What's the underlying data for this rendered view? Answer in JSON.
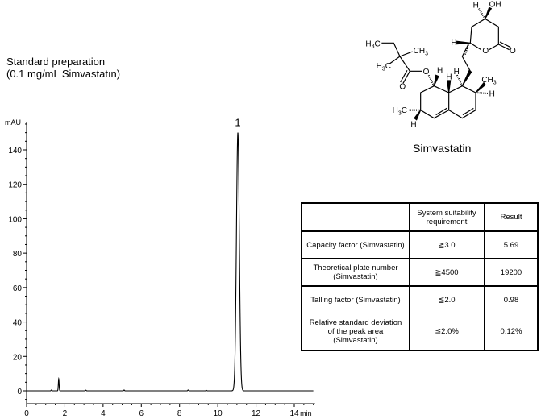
{
  "title": {
    "line1": "Standard preparation",
    "line2": "(0.1 mg/mL Simvastatın)"
  },
  "structure": {
    "caption": "Simvastatin",
    "labels": {
      "h3c_a": "H3C",
      "ch3_a": "CH3",
      "h3c_b": "H3C",
      "o_carbonyl": "O",
      "o_ester": "O",
      "h1": "H",
      "h8a": "H",
      "h8": "H",
      "ch3_7": "CH3",
      "h7": "H",
      "h3c_3": "H3C",
      "h3": "H",
      "h6p": "H",
      "o_ring": "O",
      "o_lactone": "O",
      "h4p": "H",
      "oh": "OH"
    }
  },
  "table": {
    "headers": [
      "",
      "System suitability requirement",
      "Result"
    ],
    "rows": [
      {
        "item": "Capacity factor (Simvastatin)",
        "requirement": "≧3.0",
        "result": "5.69"
      },
      {
        "item": "Theoretical plate number (Simvastatin)",
        "requirement": "≧4500",
        "result": "19200"
      },
      {
        "item": "Talling factor (Simvastatin)",
        "requirement": "≦2.0",
        "result": "0.98"
      },
      {
        "item": "Relative standard deviation of the peak area (Simvastatin)",
        "requirement": "≦2.0%",
        "result": "0.12%"
      }
    ]
  },
  "chart_data": {
    "type": "line",
    "xlabel": "min",
    "ylabel": "mAU",
    "xlim": [
      0,
      15
    ],
    "ylim": [
      -7.5,
      156
    ],
    "xticks": [
      0,
      2,
      4,
      6,
      8,
      10,
      12,
      14
    ],
    "yticks": [
      0,
      20,
      40,
      60,
      80,
      100,
      120,
      140
    ],
    "grid": false,
    "line_color": "#000000",
    "peaks": [
      {
        "time": 1.3,
        "height": 0.5
      },
      {
        "time": 1.68,
        "height": 7
      },
      {
        "time": 3.1,
        "height": 0.4
      },
      {
        "time": 5.1,
        "height": 0.5
      },
      {
        "time": 8.45,
        "height": 0.5
      },
      {
        "time": 9.4,
        "height": 0.3
      },
      {
        "time": 11.05,
        "height": 150,
        "label": "1"
      }
    ]
  }
}
